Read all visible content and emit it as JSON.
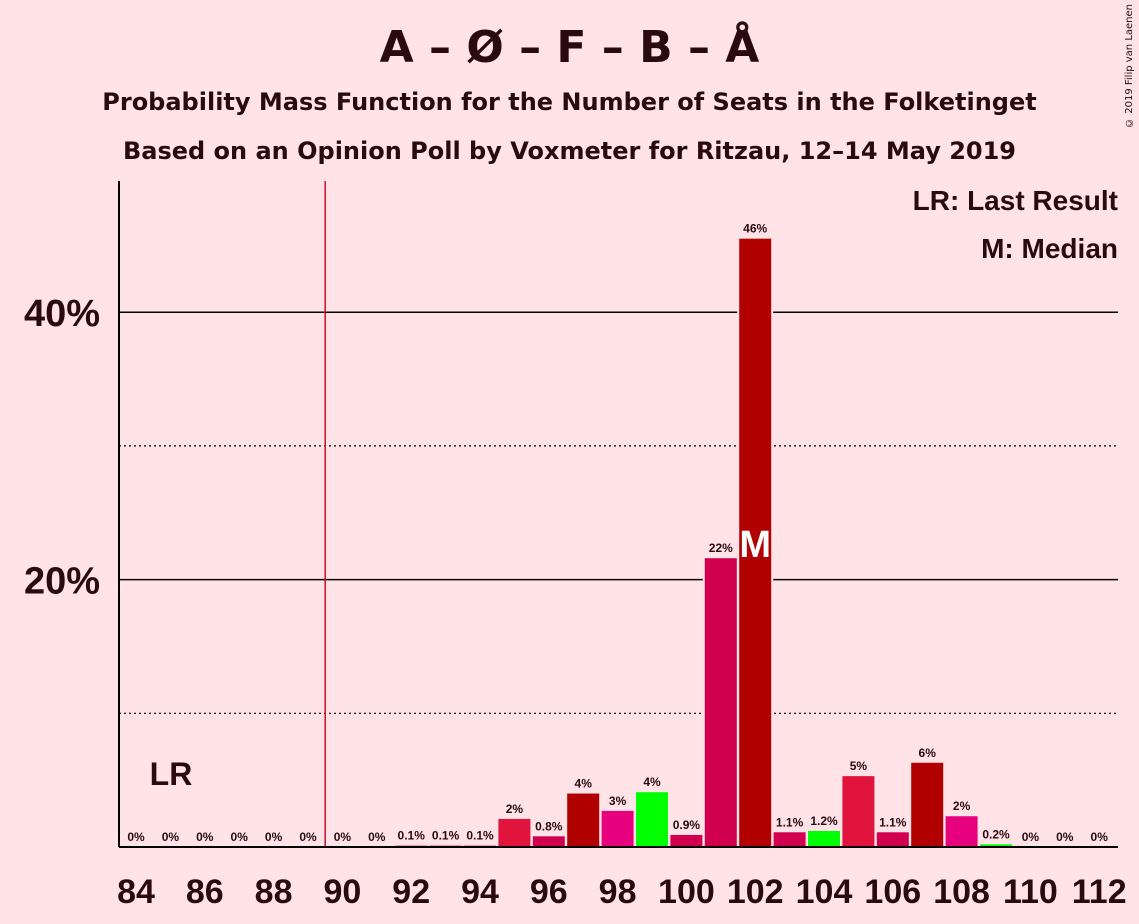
{
  "title": "A – Ø – F – B – Å",
  "subtitle": "Probability Mass Function for the Number of Seats in the Folketinget",
  "subtitle2": "Based on an Opinion Poll by Voxmeter for Ritzau, 12–14 May 2019",
  "copyright": "© 2019 Filip van Laenen",
  "legend": {
    "lr": "LR: Last Result",
    "m": "M: Median"
  },
  "markers": {
    "lr_label": "LR",
    "lr_seat": 89.5,
    "median_label": "M",
    "median_seat": 102
  },
  "colors": {
    "background": "#FFE3E7",
    "red": "#E0143C",
    "crimson": "#D0004F",
    "darkred": "#B00000",
    "pink": "#E6007E",
    "green": "#00FF00",
    "lr_line": "#C8102E"
  },
  "chart_data": {
    "type": "bar",
    "x": [
      84,
      85,
      86,
      87,
      88,
      89,
      90,
      91,
      92,
      93,
      94,
      95,
      96,
      97,
      98,
      99,
      100,
      101,
      102,
      103,
      104,
      105,
      106,
      107,
      108,
      109,
      110,
      111,
      112
    ],
    "values": [
      0,
      0,
      0,
      0,
      0,
      0,
      0,
      0,
      0.1,
      0.1,
      0.1,
      2.1,
      0.8,
      4.0,
      2.7,
      4.1,
      0.9,
      21.6,
      45.5,
      1.1,
      1.2,
      5.3,
      1.1,
      6.3,
      2.3,
      0.2,
      0,
      0,
      0
    ],
    "labels": [
      "0%",
      "0%",
      "0%",
      "0%",
      "0%",
      "0%",
      "0%",
      "0%",
      "0.1%",
      "0.1%",
      "0.1%",
      "2%",
      "0.8%",
      "4%",
      "3%",
      "4%",
      "0.9%",
      "22%",
      "46%",
      "1.1%",
      "1.2%",
      "5%",
      "1.1%",
      "6%",
      "2%",
      "0.2%",
      "0%",
      "0%",
      "0%"
    ],
    "bar_colors": [
      "red",
      "red",
      "red",
      "red",
      "red",
      "red",
      "red",
      "red",
      "red",
      "red",
      "red",
      "red",
      "crimson",
      "darkred",
      "pink",
      "green",
      "crimson",
      "crimson",
      "darkred",
      "crimson",
      "green",
      "red",
      "crimson",
      "darkred",
      "pink",
      "green",
      "red",
      "red",
      "red"
    ],
    "xticks": [
      "84",
      "86",
      "88",
      "90",
      "92",
      "94",
      "96",
      "98",
      "100",
      "102",
      "104",
      "106",
      "108",
      "110",
      "112"
    ],
    "yticks": [
      {
        "value": 20,
        "label": "20%"
      },
      {
        "value": 40,
        "label": "40%"
      }
    ],
    "ylim": [
      0,
      50
    ],
    "grid": "solid at 20/40, dotted at 10/30"
  }
}
